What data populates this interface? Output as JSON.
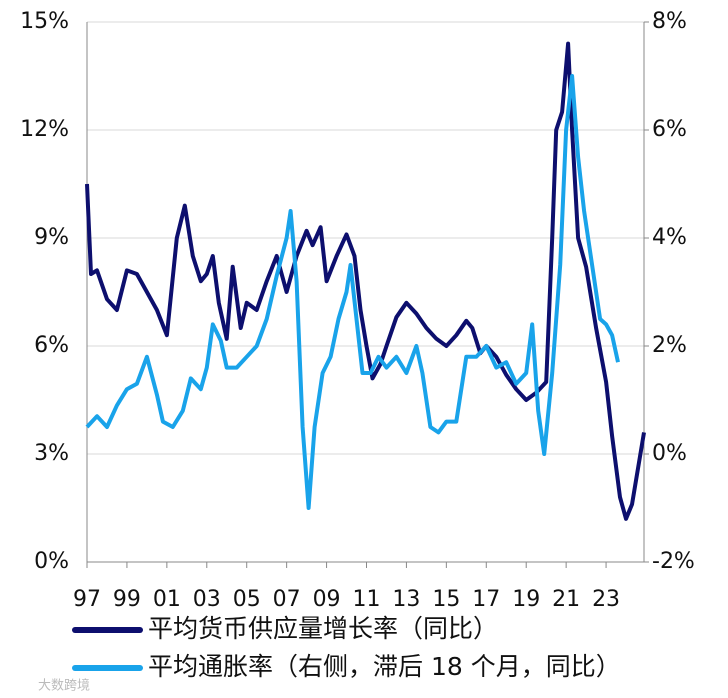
{
  "chart_data": {
    "type": "line",
    "xlim": [
      1997,
      2024.9
    ],
    "xticks": [
      {
        "value": 1997,
        "label": "97"
      },
      {
        "value": 1999,
        "label": "99"
      },
      {
        "value": 2001,
        "label": "01"
      },
      {
        "value": 2003,
        "label": "03"
      },
      {
        "value": 2005,
        "label": "05"
      },
      {
        "value": 2007,
        "label": "07"
      },
      {
        "value": 2009,
        "label": "09"
      },
      {
        "value": 2011,
        "label": "11"
      },
      {
        "value": 2013,
        "label": "13"
      },
      {
        "value": 2015,
        "label": "15"
      },
      {
        "value": 2017,
        "label": "17"
      },
      {
        "value": 2019,
        "label": "19"
      },
      {
        "value": 2021,
        "label": "21"
      },
      {
        "value": 2023,
        "label": "23"
      }
    ],
    "ylim": [
      0,
      15
    ],
    "yticks": [
      {
        "value": 0,
        "label": "0%"
      },
      {
        "value": 3,
        "label": "3%"
      },
      {
        "value": 6,
        "label": "6%"
      },
      {
        "value": 9,
        "label": "9%"
      },
      {
        "value": 12,
        "label": "12%"
      },
      {
        "value": 15,
        "label": "15%"
      }
    ],
    "y2lim": [
      -2,
      8
    ],
    "y2ticks": [
      {
        "value": -2,
        "label": "-2%"
      },
      {
        "value": 0,
        "label": "0%"
      },
      {
        "value": 2,
        "label": "2%"
      },
      {
        "value": 4,
        "label": "4%"
      },
      {
        "value": 6,
        "label": "6%"
      },
      {
        "value": 8,
        "label": "8%"
      }
    ],
    "grid": true,
    "series": [
      {
        "name": "平均货币供应量增长率（同比）",
        "color": "#0d0f6e",
        "axis": "y",
        "x": [
          1997,
          1997.2,
          1997.5,
          1998,
          1998.5,
          1999,
          1999.5,
          2000,
          2000.5,
          2001,
          2001.5,
          2001.9,
          2002.3,
          2002.7,
          2003,
          2003.3,
          2003.6,
          2004,
          2004.3,
          2004.7,
          2005,
          2005.5,
          2006,
          2006.5,
          2007,
          2007.5,
          2008,
          2008.3,
          2008.7,
          2009,
          2009.5,
          2010,
          2010.4,
          2010.7,
          2011,
          2011.3,
          2011.7,
          2012,
          2012.5,
          2013,
          2013.5,
          2014,
          2014.5,
          2015,
          2015.5,
          2016,
          2016.3,
          2016.7,
          2017,
          2017.5,
          2018,
          2018.5,
          2019,
          2019.5,
          2020,
          2020.3,
          2020.5,
          2020.8,
          2021.1,
          2021.3,
          2021.6,
          2022,
          2022.5,
          2023,
          2023.3,
          2023.7,
          2024,
          2024.3,
          2024.6,
          2024.9
        ],
        "values": [
          10.5,
          8,
          8.1,
          7.3,
          7,
          8.1,
          8,
          7.5,
          7,
          6.3,
          9,
          9.9,
          8.5,
          7.8,
          8,
          8.5,
          7.2,
          6.2,
          8.2,
          6.5,
          7.2,
          7,
          7.8,
          8.5,
          7.5,
          8.5,
          9.2,
          8.8,
          9.3,
          7.8,
          8.5,
          9.1,
          8.5,
          7,
          6,
          5.1,
          5.5,
          6,
          6.8,
          7.2,
          6.9,
          6.5,
          6.2,
          6,
          6.3,
          6.7,
          6.5,
          5.8,
          6,
          5.7,
          5.2,
          4.8,
          4.5,
          4.7,
          5,
          9,
          12,
          12.5,
          14.4,
          12,
          9,
          8.2,
          6.5,
          5,
          3.5,
          1.8,
          1.2,
          1.6,
          2.6,
          3.6
        ]
      },
      {
        "name": "平均通胀率（右侧，滞后 18 个月，同比）",
        "color": "#19a3ea",
        "axis": "y2",
        "x": [
          1997,
          1997.5,
          1998,
          1998.5,
          1999,
          1999.5,
          2000,
          2000.5,
          2000.8,
          2001.3,
          2001.8,
          2002.2,
          2002.7,
          2003,
          2003.3,
          2003.7,
          2004,
          2004.5,
          2005,
          2005.5,
          2006,
          2006.5,
          2007,
          2007.2,
          2007.5,
          2007.8,
          2008.1,
          2008.4,
          2008.8,
          2009.2,
          2009.6,
          2010,
          2010.2,
          2010.5,
          2010.8,
          2011.2,
          2011.6,
          2012,
          2012.5,
          2013,
          2013.5,
          2013.8,
          2014.2,
          2014.6,
          2015,
          2015.5,
          2016,
          2016.5,
          2017,
          2017.5,
          2018,
          2018.5,
          2019,
          2019.3,
          2019.6,
          2019.9,
          2020.3,
          2020.7,
          2021,
          2021.3,
          2021.6,
          2021.9,
          2022.3,
          2022.7,
          2023,
          2023.3,
          2023.6
        ],
        "values": [
          0.5,
          0.7,
          0.5,
          0.9,
          1.2,
          1.3,
          1.8,
          1.1,
          0.6,
          0.5,
          0.8,
          1.4,
          1.2,
          1.6,
          2.4,
          2.1,
          1.6,
          1.6,
          1.8,
          2,
          2.5,
          3.3,
          4,
          4.5,
          3.2,
          0.5,
          -1,
          0.5,
          1.5,
          1.8,
          2.5,
          3,
          3.5,
          2.5,
          1.5,
          1.5,
          1.8,
          1.6,
          1.8,
          1.5,
          2,
          1.5,
          0.5,
          0.4,
          0.6,
          0.6,
          1.8,
          1.8,
          2,
          1.6,
          1.7,
          1.3,
          1.5,
          2.4,
          0.8,
          0,
          1.5,
          3.5,
          6,
          7,
          5.5,
          4.5,
          3.5,
          2.5,
          2.4,
          2.2,
          1.7
        ]
      }
    ],
    "watermark": "大数跨境"
  }
}
